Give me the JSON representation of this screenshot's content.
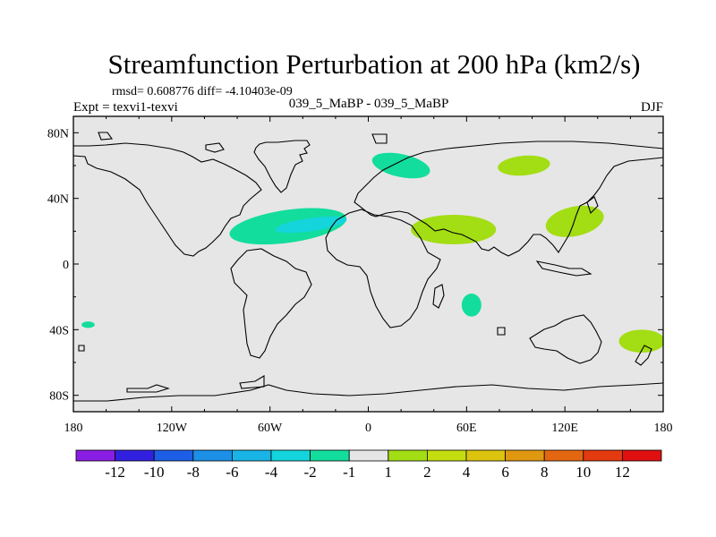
{
  "chart_data": {
    "type": "heatmap",
    "title": "Streamfunction Perturbation at 200 hPa (km2/s)",
    "subtitle_stats": "rmsd= 0.608776 diff= -4.10403e-09",
    "left_label": "Expt = texvi1-texvi",
    "center_label": "039_5_MaBP - 039_5_MaBP",
    "right_label": "DJF",
    "map_background_color": "#e6e6e6",
    "xlim": [
      -180,
      180
    ],
    "ylim": [
      -90,
      90
    ],
    "x_ticks": [
      {
        "value": -180,
        "label": "180"
      },
      {
        "value": -120,
        "label": "120W"
      },
      {
        "value": -60,
        "label": "60W"
      },
      {
        "value": 0,
        "label": "0"
      },
      {
        "value": 60,
        "label": "60E"
      },
      {
        "value": 120,
        "label": "120E"
      },
      {
        "value": 180,
        "label": "180"
      }
    ],
    "y_ticks": [
      {
        "value": 80,
        "label": "80N"
      },
      {
        "value": 40,
        "label": "40N"
      },
      {
        "value": 0,
        "label": "0"
      },
      {
        "value": -40,
        "label": "40S"
      },
      {
        "value": -80,
        "label": "80S"
      }
    ],
    "colorbar": {
      "colors": [
        "#8a1de3",
        "#3220e0",
        "#1d5ee6",
        "#1c8fe6",
        "#18b4e6",
        "#14d4dc",
        "#13dd9c",
        "#e6e6e6",
        "#a3dd14",
        "#c3dd0f",
        "#dcc30e",
        "#e09810",
        "#e26710",
        "#e33a10",
        "#e01010"
      ],
      "labels": [
        "-12",
        "-10",
        "-8",
        "-6",
        "-4",
        "-2",
        "-1",
        "1",
        "2",
        "4",
        "6",
        "8",
        "10",
        "12"
      ]
    },
    "anomalies": [
      {
        "lon": -49,
        "lat": 23,
        "rlon": 36,
        "rlat": 10,
        "tilt": 8,
        "value": -2,
        "color": "#13dd9c"
      },
      {
        "lon": -35,
        "lat": 24,
        "rlon": 22,
        "rlat": 4,
        "tilt": 8,
        "value": -4,
        "color": "#14d4dc"
      },
      {
        "lon": 20,
        "lat": 60,
        "rlon": 18,
        "rlat": 7,
        "tilt": -12,
        "value": -2,
        "color": "#13dd9c"
      },
      {
        "lon": 95,
        "lat": 60,
        "rlon": 16,
        "rlat": 6,
        "tilt": 5,
        "value": 2,
        "color": "#a3dd14"
      },
      {
        "lon": 52,
        "lat": 21,
        "rlon": 26,
        "rlat": 9,
        "tilt": 0,
        "value": 2,
        "color": "#a3dd14"
      },
      {
        "lon": 126,
        "lat": 26,
        "rlon": 18,
        "rlat": 9,
        "tilt": 12,
        "value": 2,
        "color": "#a3dd14"
      },
      {
        "lon": 63,
        "lat": -25,
        "rlon": 6,
        "rlat": 7,
        "tilt": 0,
        "value": -2,
        "color": "#13dd9c"
      },
      {
        "lon": -171,
        "lat": -37,
        "rlon": 4,
        "rlat": 2,
        "tilt": 0,
        "value": -2,
        "color": "#13dd9c"
      },
      {
        "lon": 167,
        "lat": -47,
        "rlon": 14,
        "rlat": 7,
        "tilt": 0,
        "value": 2,
        "color": "#a3dd14"
      }
    ]
  }
}
